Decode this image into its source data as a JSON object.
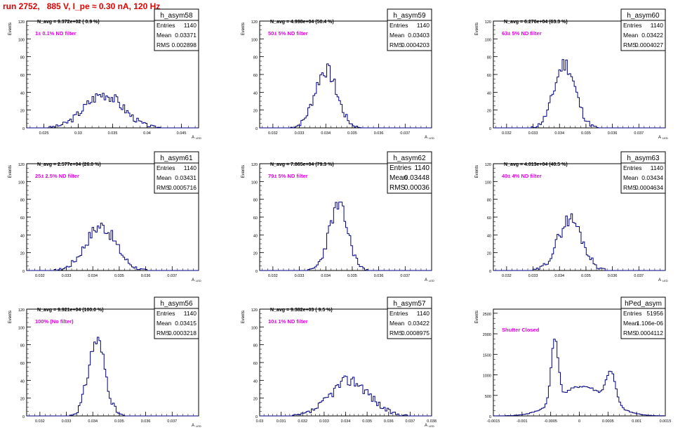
{
  "page": {
    "title": "run 2752,   885 V, I_pe ≈ 0.30 nA, 120 Hz",
    "title_color": "#e00000"
  },
  "chart_data": [
    {
      "type": "bar",
      "name": "h_asym58",
      "navg": "N_avg = 9.372e+02 ( 0.9 %)",
      "filter": "1± 0.1% ND filter",
      "stats": [
        [
          "Entries",
          "1140"
        ],
        [
          "Mean",
          "0.03371"
        ],
        [
          "RMS",
          "0.002898"
        ]
      ],
      "xlim": [
        0.0225,
        0.0475
      ],
      "xticks": [
        "0.025",
        "0.03",
        "0.035",
        "0.04",
        "0.045"
      ],
      "ylim": [
        0,
        120
      ],
      "yticks": [
        "0",
        "20",
        "40",
        "60",
        "80",
        "100",
        "120"
      ],
      "xlabel": "A",
      "xlabel_sub": "LED",
      "ylabel": "Events",
      "dist": [
        {
          "m": 0.0337,
          "s": 0.0028,
          "h": 38
        }
      ],
      "seed": 3
    },
    {
      "type": "bar",
      "name": "h_asym59",
      "navg": "N_avg = 4.998e+04 (50.4 %)",
      "filter": "50± 5% ND filter",
      "stats": [
        [
          "Entries",
          "1140"
        ],
        [
          "Mean",
          "0.03403"
        ],
        [
          "RMS",
          "0.0004203"
        ]
      ],
      "xlim": [
        0.0315,
        0.038
      ],
      "xticks": [
        "0.032",
        "0.033",
        "0.034",
        "0.035",
        "0.036",
        "0.037"
      ],
      "ylim": [
        0,
        120
      ],
      "yticks": [
        "0",
        "20",
        "40",
        "60",
        "80",
        "100",
        "120"
      ],
      "xlabel": "A",
      "xlabel_sub": "LED",
      "ylabel": "Events",
      "dist": [
        {
          "m": 0.034,
          "s": 0.00042,
          "h": 65
        }
      ],
      "seed": 7
    },
    {
      "type": "bar",
      "name": "h_asym60",
      "navg": "N_avg = 6.276e+04 (63.3 %)",
      "filter": "63± 5% ND filter",
      "stats": [
        [
          "Entries",
          "1140"
        ],
        [
          "Mean",
          "0.03422"
        ],
        [
          "RMS",
          "0.0004027"
        ]
      ],
      "xlim": [
        0.0315,
        0.038
      ],
      "xticks": [
        "0.032",
        "0.033",
        "0.034",
        "0.035",
        "0.036",
        "0.037"
      ],
      "ylim": [
        0,
        120
      ],
      "yticks": [
        "0",
        "20",
        "40",
        "60",
        "80",
        "100",
        "120"
      ],
      "xlabel": "A",
      "xlabel_sub": "LED",
      "ylabel": "Events",
      "dist": [
        {
          "m": 0.0342,
          "s": 0.0004,
          "h": 72
        }
      ],
      "seed": 11
    },
    {
      "type": "bar",
      "name": "h_asym61",
      "navg": "N_avg = 2.577e+04 (26.0 %)",
      "filter": "25± 2.5% ND filter",
      "stats": [
        [
          "Entries",
          "1140"
        ],
        [
          "Mean",
          "0.03431"
        ],
        [
          "RMS",
          "0.0005716"
        ]
      ],
      "xlim": [
        0.0315,
        0.038
      ],
      "xticks": [
        "0.032",
        "0.033",
        "0.034",
        "0.035",
        "0.036",
        "0.037"
      ],
      "ylim": [
        0,
        120
      ],
      "yticks": [
        "0",
        "20",
        "40",
        "60",
        "80",
        "100",
        "120"
      ],
      "xlabel": "A",
      "xlabel_sub": "LED",
      "ylabel": "Events",
      "dist": [
        {
          "m": 0.0343,
          "s": 0.00057,
          "h": 50
        }
      ],
      "seed": 17
    },
    {
      "type": "bar",
      "name": "h_asym62",
      "navg": "N_avg = 7.865e+04 (79.3 %)",
      "filter": "79± 5% ND filter",
      "stats": [
        [
          "Entries",
          "1140"
        ],
        [
          "Mean",
          "0.03448"
        ],
        [
          "RMS",
          "0.00036"
        ]
      ],
      "xlim": [
        0.0315,
        0.038
      ],
      "xticks": [
        "0.032",
        "0.033",
        "0.034",
        "0.035",
        "0.036",
        "0.037"
      ],
      "ylim": [
        0,
        120
      ],
      "yticks": [
        "0",
        "20",
        "40",
        "60",
        "80",
        "100",
        "120"
      ],
      "xlabel": "A",
      "xlabel_sub": "LED",
      "ylabel": "Events",
      "dist": [
        {
          "m": 0.03448,
          "s": 0.00036,
          "h": 72
        }
      ],
      "seed": 23,
      "large_stats": true
    },
    {
      "type": "bar",
      "name": "h_asym63",
      "navg": "N_avg = 4.013e+04 (40.5 %)",
      "filter": "40± 4% ND filter",
      "stats": [
        [
          "Entries",
          "1140"
        ],
        [
          "Mean",
          "0.03434"
        ],
        [
          "RMS",
          "0.0004634"
        ]
      ],
      "xlim": [
        0.0315,
        0.038
      ],
      "xticks": [
        "0.032",
        "0.033",
        "0.034",
        "0.035",
        "0.036",
        "0.037"
      ],
      "ylim": [
        0,
        120
      ],
      "yticks": [
        "0",
        "20",
        "40",
        "60",
        "80",
        "100",
        "120"
      ],
      "xlabel": "A",
      "xlabel_sub": "LED",
      "ylabel": "Events",
      "dist": [
        {
          "m": 0.0344,
          "s": 0.00046,
          "h": 58
        }
      ],
      "seed": 29
    },
    {
      "type": "bar",
      "name": "h_asym56",
      "navg": "N_avg = 9.921e+04 (100.0 %)",
      "filter": "100% (No filter)",
      "stats": [
        [
          "Entries",
          "1140"
        ],
        [
          "Mean",
          "0.03415"
        ],
        [
          "RMS",
          "0.0003218"
        ]
      ],
      "xlim": [
        0.0315,
        0.038
      ],
      "xticks": [
        "0.032",
        "0.033",
        "0.034",
        "0.035",
        "0.036",
        "0.037"
      ],
      "ylim": [
        0,
        120
      ],
      "yticks": [
        "0",
        "20",
        "40",
        "60",
        "80",
        "100",
        "120"
      ],
      "xlabel": "A",
      "xlabel_sub": "LED",
      "ylabel": "Events",
      "dist": [
        {
          "m": 0.03415,
          "s": 0.00032,
          "h": 85
        }
      ],
      "seed": 31
    },
    {
      "type": "bar",
      "name": "h_asym57",
      "navg": "N_avg = 9.382e+03 ( 9.5 %)",
      "filter": "10± 1% ND filter",
      "stats": [
        [
          "Entries",
          "1140"
        ],
        [
          "Mean",
          "0.03422"
        ],
        [
          "RMS",
          "0.0008975"
        ]
      ],
      "xlim": [
        0.03,
        0.038
      ],
      "xticks": [
        "0.03",
        "0.031",
        "0.032",
        "0.033",
        "0.034",
        "0.035",
        "0.036",
        "0.037",
        "0.038"
      ],
      "ylim": [
        0,
        120
      ],
      "yticks": [
        "0",
        "20",
        "40",
        "60",
        "80",
        "100",
        "120"
      ],
      "xlabel": "A",
      "xlabel_sub": "LED",
      "ylabel": "Events",
      "dist": [
        {
          "m": 0.0342,
          "s": 0.0009,
          "h": 40
        }
      ],
      "seed": 37
    },
    {
      "type": "bar",
      "name": "hPed_asym",
      "navg": "",
      "filter": "Shutter Closed",
      "stats": [
        [
          "Entries",
          "51956"
        ],
        [
          "Mean",
          "1.106e-06"
        ],
        [
          "RMS",
          "0.0004112"
        ]
      ],
      "xlim": [
        -0.0015,
        0.0015
      ],
      "xticks": [
        "-0.0015",
        "-0.001",
        "-0.0005",
        "0",
        "0.0005",
        "0.001",
        "0.0015"
      ],
      "ylim": [
        0,
        2600
      ],
      "yticks": [
        "0",
        "500",
        "1000",
        "1500",
        "2000",
        "2500"
      ],
      "xlabel": "",
      "xlabel_sub": "",
      "ylabel": "Events",
      "dist": [
        {
          "m": -0.00043,
          "s": 6e-05,
          "h": 1550
        },
        {
          "m": 0.00055,
          "s": 8e-05,
          "h": 750
        },
        {
          "m": 5e-05,
          "s": 0.00042,
          "h": 720
        }
      ],
      "seed": 41,
      "xpos": [
        -0.0015,
        -0.0005,
        0.0005,
        0.0015
      ],
      "ymax": 2600
    }
  ],
  "colors": {
    "hist": "#000080",
    "filter_label": "#e000e0",
    "frame": "#000000"
  }
}
